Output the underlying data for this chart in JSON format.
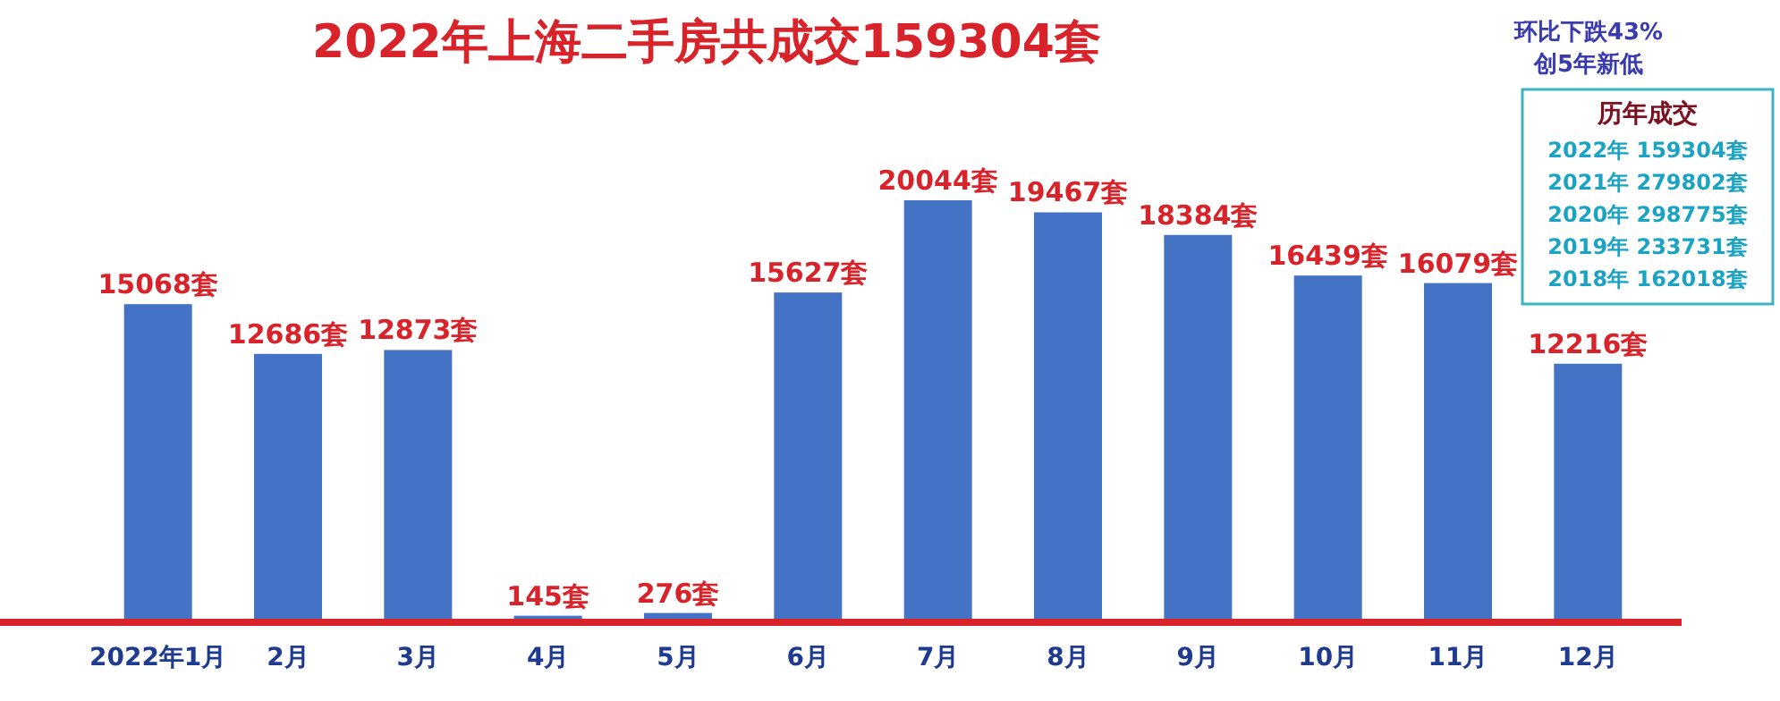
{
  "chart_data": {
    "type": "bar",
    "title": "2022年上海二手房共成交159304套",
    "categories": [
      "2022年1月",
      "2月",
      "3月",
      "4月",
      "5月",
      "6月",
      "7月",
      "8月",
      "9月",
      "10月",
      "11月",
      "12月"
    ],
    "values": [
      15068,
      12686,
      12873,
      145,
      276,
      15627,
      20044,
      19467,
      18384,
      16439,
      16079,
      12216
    ],
    "value_labels": [
      "15068套",
      "12686套",
      "12873套",
      "145套",
      "276套",
      "15627套",
      "20044套",
      "19467套",
      "18384套",
      "16439套",
      "16079套",
      "12216套"
    ],
    "color": "#4472c4",
    "annotations": [
      "环比下跌43%",
      "创5年新低",
      "历年成交",
      "2022年  159304套",
      "2021年  279802套",
      "2020年  298775套",
      "2019年  233731套",
      "2018年  162018套"
    ],
    "stacked": false
  }
}
